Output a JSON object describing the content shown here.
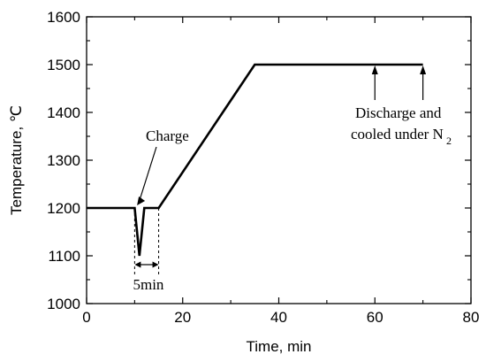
{
  "chart_data": {
    "type": "line",
    "xlabel": "Time, min",
    "ylabel": "Temperature, ℃",
    "xlim": [
      0,
      80
    ],
    "ylim": [
      1000,
      1600
    ],
    "x_ticks": [
      0,
      20,
      40,
      60,
      80
    ],
    "y_ticks": [
      1000,
      1100,
      1200,
      1300,
      1400,
      1500,
      1600
    ],
    "grid": false,
    "series": [
      {
        "x": [
          0,
          10,
          11,
          12,
          13,
          15,
          35,
          70
        ],
        "y": [
          1200,
          1200,
          1100,
          1200,
          1200,
          1200,
          1500,
          1500
        ]
      }
    ],
    "annotations": {
      "charge": {
        "text": "Charge",
        "x": 10.5,
        "y": 1200
      },
      "discharge": {
        "line1": "Discharge and",
        "line2": "cooled under N",
        "line2_sub": "2",
        "x": [
          60,
          70
        ],
        "y": 1500
      },
      "interval": {
        "text": "5min",
        "x": [
          10,
          15
        ]
      }
    }
  }
}
